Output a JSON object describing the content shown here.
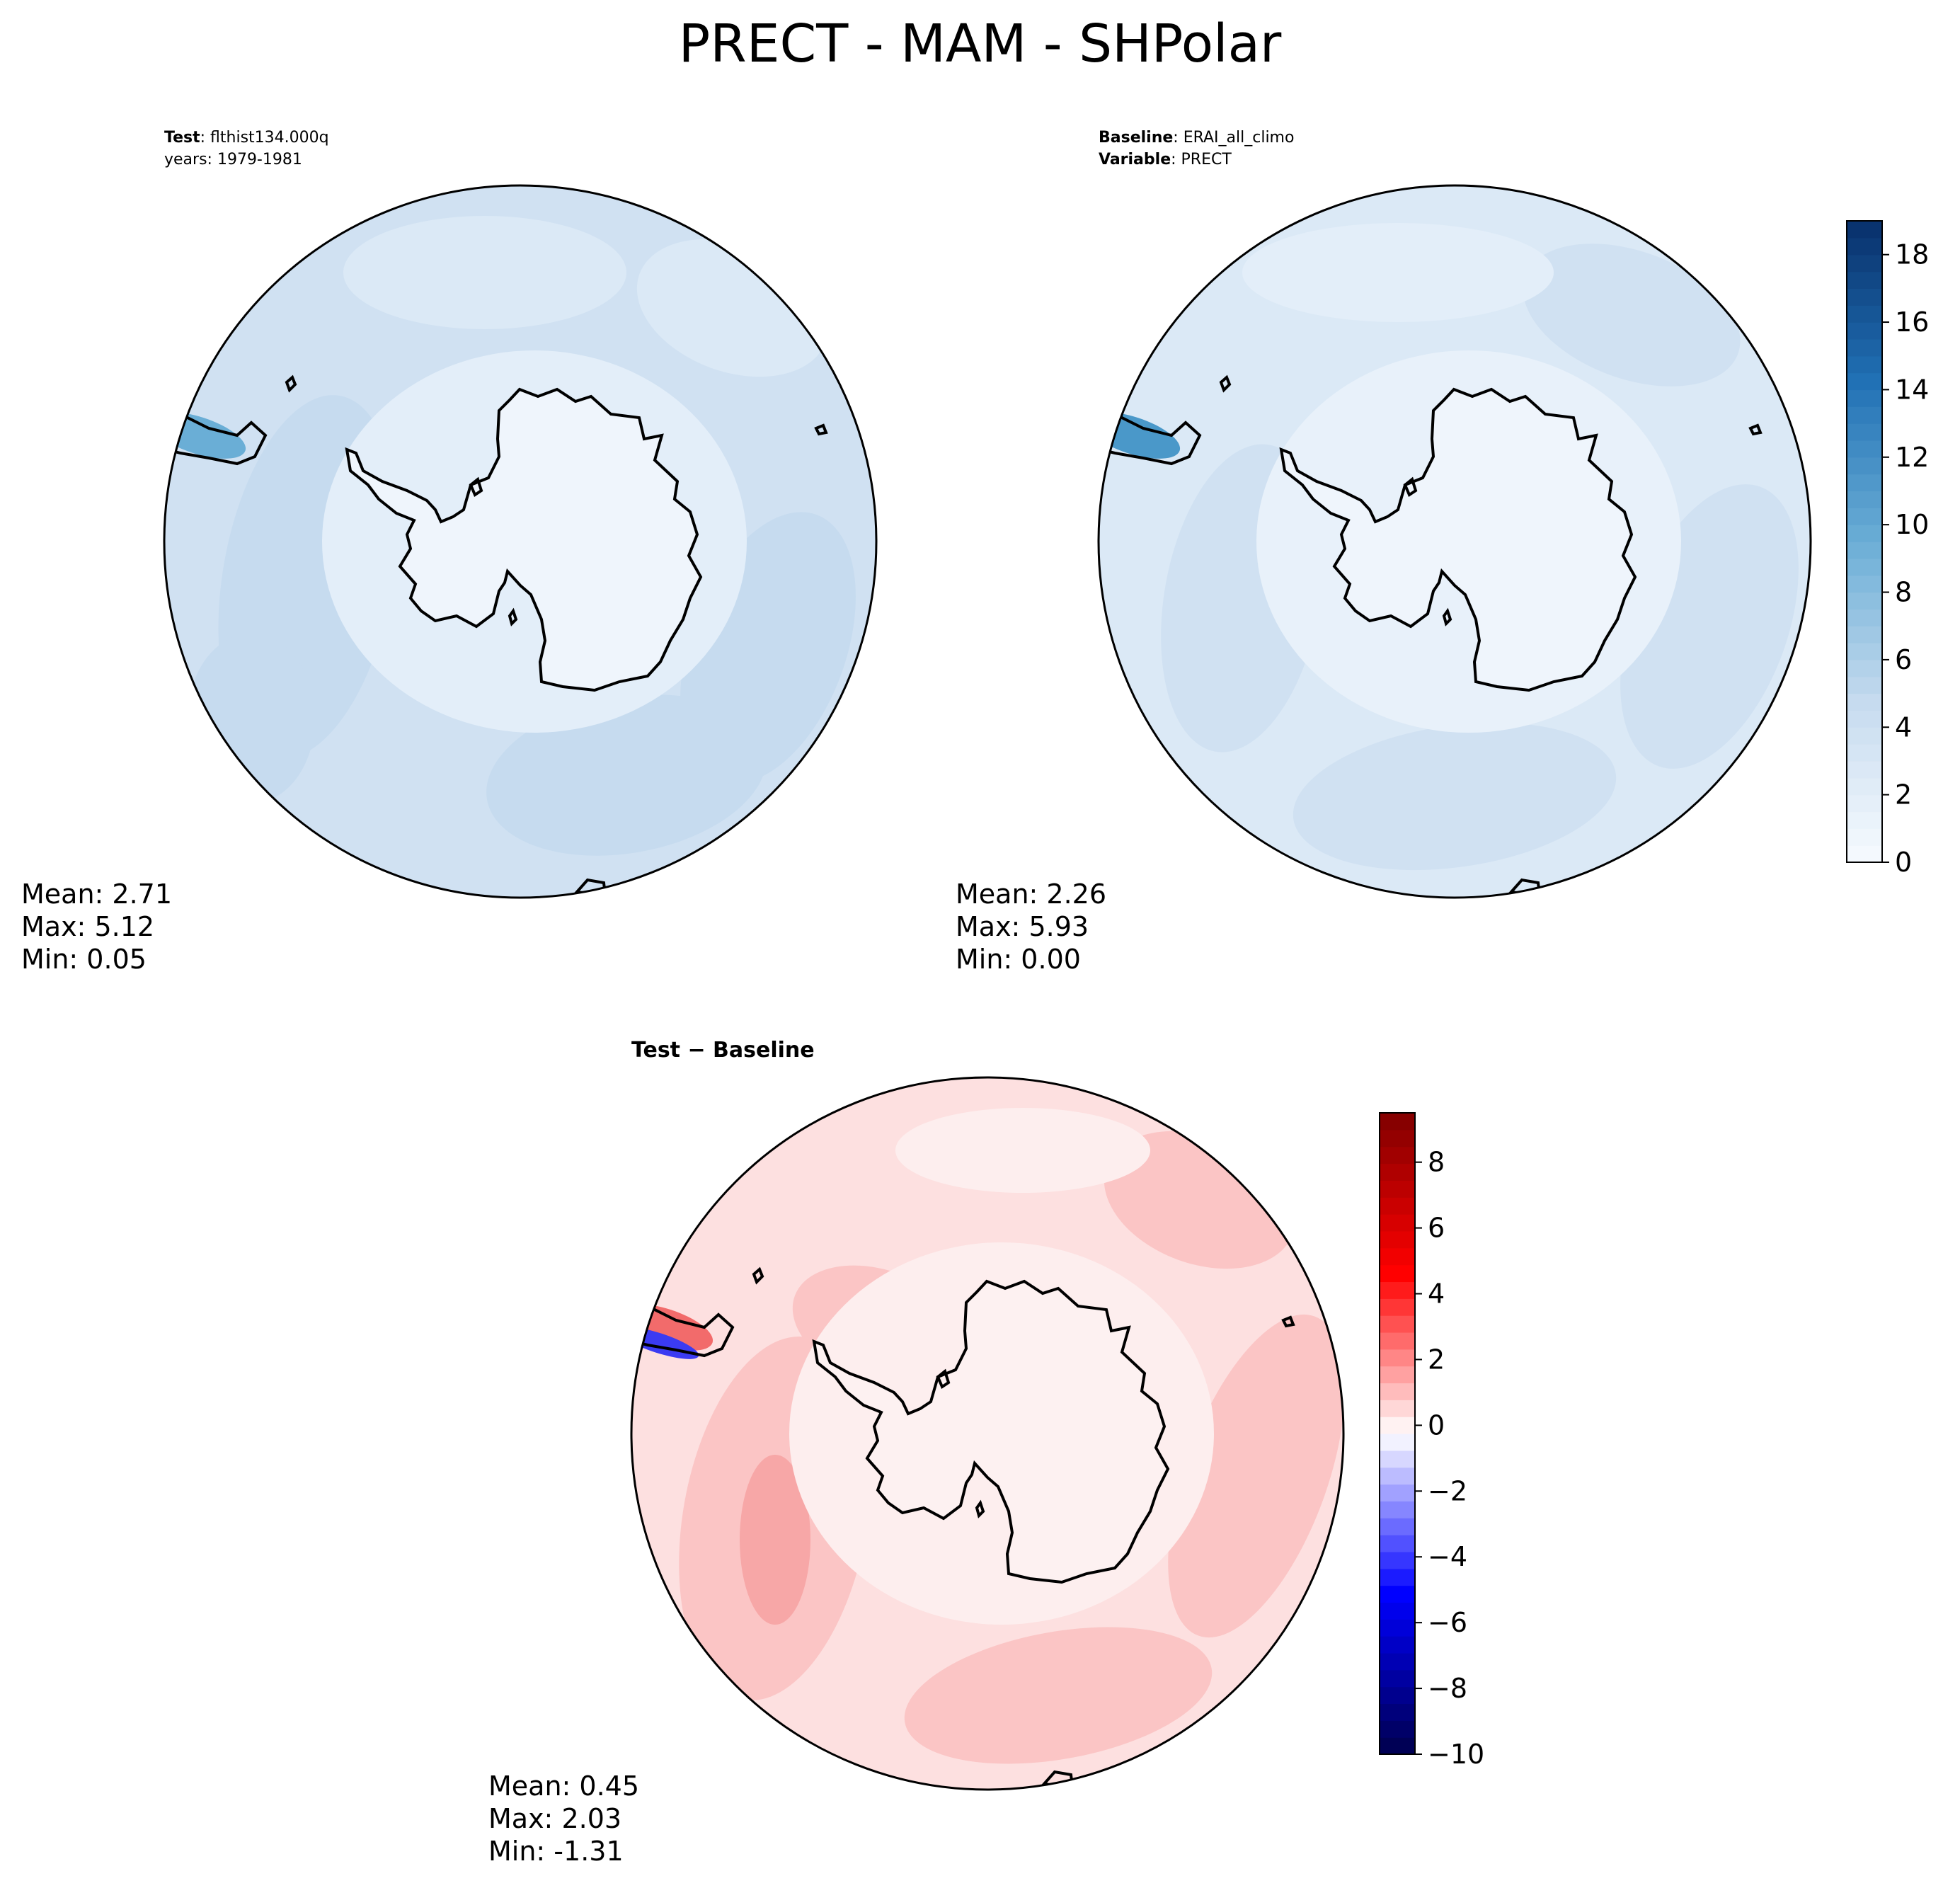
{
  "figure": {
    "title": "PRECT - MAM - SHPolar"
  },
  "panels": {
    "test": {
      "label_key": "Test",
      "label_value": ": flthist134.000q",
      "line2": "years: 1979-1981",
      "stats": {
        "mean": "Mean:  2.71",
        "max": "Max:  5.12",
        "min": "Min:  0.05"
      }
    },
    "baseline": {
      "label_key": "Baseline",
      "label_value": ": ERAI_all_climo",
      "var_key": "Variable",
      "var_value": ": PRECT",
      "stats": {
        "mean": "Mean:  2.26",
        "max": "Max:  5.93",
        "min": "Min:  0.00"
      }
    },
    "diff": {
      "title": "Test − Baseline",
      "stats": {
        "mean": "Mean:  0.45",
        "max": "Max:  2.03",
        "min": "Min: -1.31"
      }
    }
  },
  "chart_data": [
    {
      "type": "heatmap",
      "name": "Test",
      "projection": "south polar stereographic",
      "colormap": "Blues",
      "summary": {
        "mean": 2.71,
        "max": 5.12,
        "min": 0.05
      }
    },
    {
      "type": "heatmap",
      "name": "Baseline",
      "projection": "south polar stereographic",
      "colormap": "Blues",
      "summary": {
        "mean": 2.26,
        "max": 5.93,
        "min": 0.0
      },
      "colorbar": {
        "range": [
          0,
          19
        ],
        "ticks": [
          0,
          2,
          4,
          6,
          8,
          10,
          12,
          14,
          16,
          18
        ],
        "tick_labels": [
          "0",
          "2",
          "4",
          "6",
          "8",
          "10",
          "12",
          "14",
          "16",
          "18"
        ]
      }
    },
    {
      "type": "heatmap",
      "name": "Test − Baseline",
      "projection": "south polar stereographic",
      "colormap": "seismic",
      "summary": {
        "mean": 0.45,
        "max": 2.03,
        "min": -1.31
      },
      "colorbar": {
        "range": [
          -10,
          9.5
        ],
        "ticks": [
          -10,
          -8,
          -6,
          -4,
          -2,
          0,
          2,
          4,
          6,
          8
        ],
        "tick_labels": [
          "−10",
          "−8",
          "−6",
          "−4",
          "−2",
          "0",
          "2",
          "4",
          "6",
          "8"
        ]
      }
    }
  ]
}
